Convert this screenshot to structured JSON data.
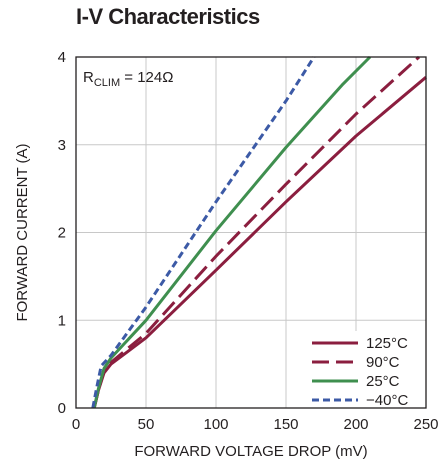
{
  "chart_data": {
    "type": "line",
    "title": "I-V Characteristics",
    "xlabel": "FORWARD VOLTAGE DROP (mV)",
    "ylabel": "FORWARD CURRENT (A)",
    "xlim": [
      0,
      250
    ],
    "ylim": [
      0,
      4
    ],
    "xticks": [
      0,
      50,
      100,
      150,
      200,
      250
    ],
    "yticks": [
      0,
      1,
      2,
      3,
      4
    ],
    "grid": true,
    "legend_position": "bottom-right",
    "annotation": {
      "main": "R",
      "sub": "CLIM",
      "rest": " = 124Ω"
    },
    "series": [
      {
        "name": "125°C",
        "color": "#8b1e3f",
        "dash": "solid",
        "points": [
          [
            13,
            0
          ],
          [
            16,
            0.2
          ],
          [
            20,
            0.4
          ],
          [
            25,
            0.5
          ],
          [
            50,
            0.8
          ],
          [
            100,
            1.57
          ],
          [
            150,
            2.35
          ],
          [
            200,
            3.1
          ],
          [
            250,
            3.77
          ]
        ]
      },
      {
        "name": "90°C",
        "color": "#8b1e3f",
        "dash": "dashed",
        "points": [
          [
            13,
            0
          ],
          [
            16,
            0.2
          ],
          [
            20,
            0.42
          ],
          [
            25,
            0.52
          ],
          [
            50,
            0.85
          ],
          [
            100,
            1.73
          ],
          [
            150,
            2.55
          ],
          [
            200,
            3.35
          ],
          [
            245,
            4.0
          ]
        ]
      },
      {
        "name": "25°C",
        "color": "#3f8f4f",
        "dash": "solid",
        "points": [
          [
            13,
            0
          ],
          [
            16,
            0.22
          ],
          [
            20,
            0.45
          ],
          [
            25,
            0.57
          ],
          [
            50,
            1.0
          ],
          [
            100,
            2.02
          ],
          [
            150,
            2.97
          ],
          [
            190,
            3.68
          ],
          [
            210,
            4.0
          ]
        ]
      },
      {
        "name": "−40°C",
        "color": "#3c5aa6",
        "dash": "dotted",
        "points": [
          [
            12,
            0
          ],
          [
            15,
            0.25
          ],
          [
            18,
            0.48
          ],
          [
            25,
            0.6
          ],
          [
            50,
            1.15
          ],
          [
            100,
            2.35
          ],
          [
            150,
            3.5
          ],
          [
            170,
            4.0
          ]
        ]
      }
    ]
  }
}
